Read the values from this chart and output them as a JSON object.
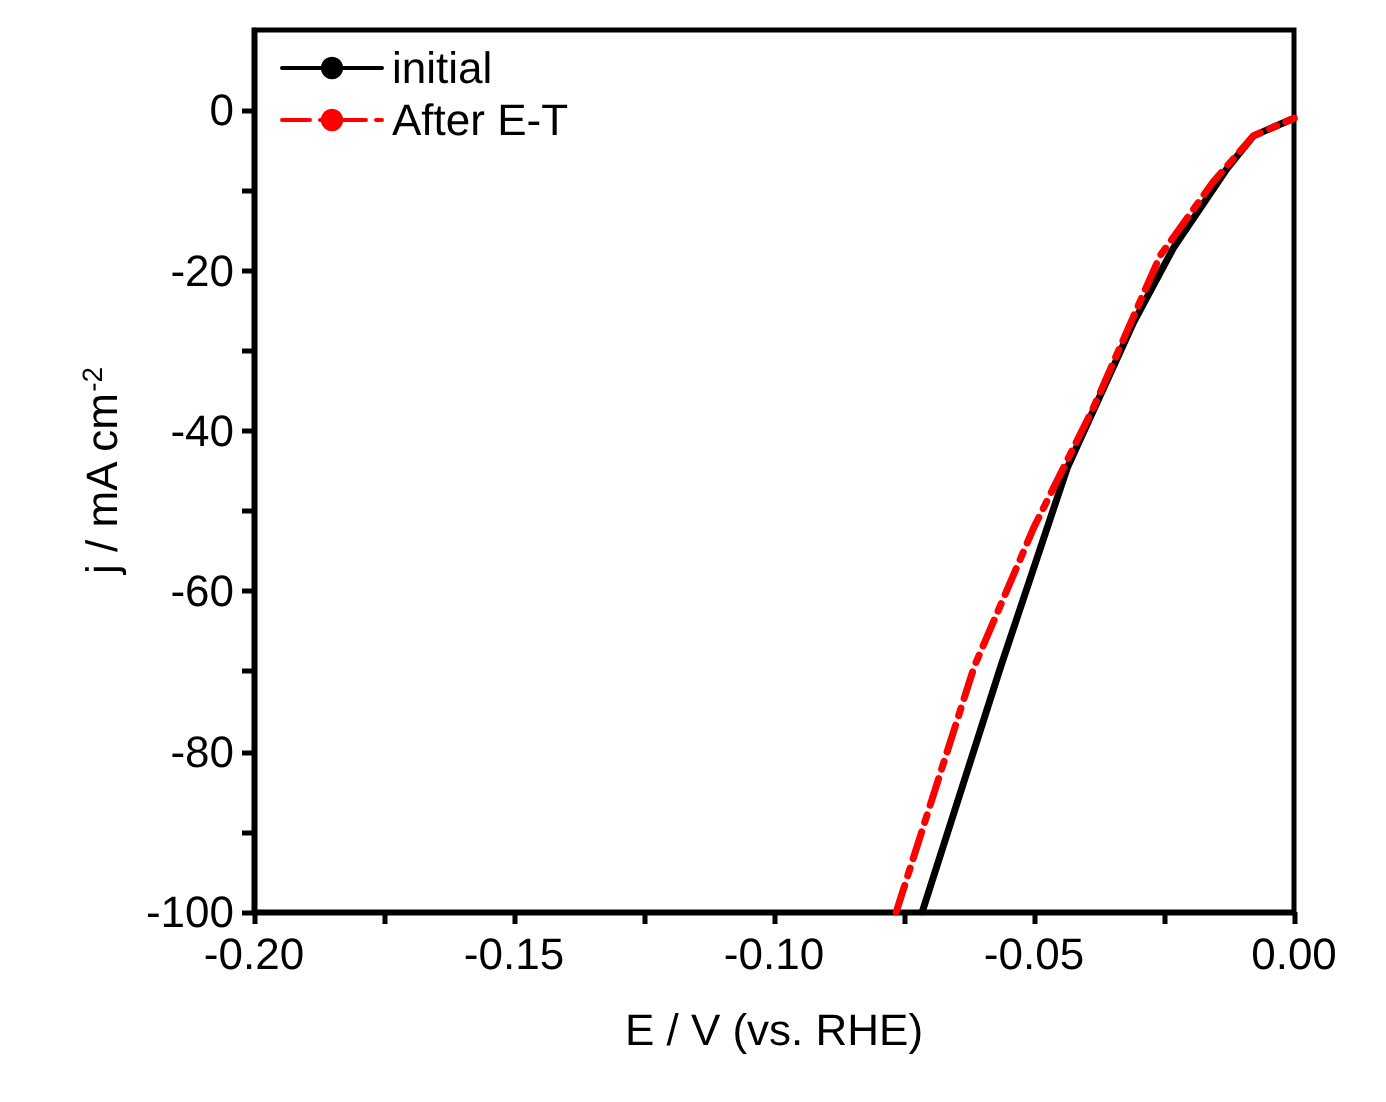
{
  "chart_data": {
    "type": "line",
    "xlabel": "E / V (vs. RHE)",
    "ylabel": "j / mA cm$^{-2}$",
    "xlim": [
      -0.2,
      0
    ],
    "ylim": [
      -100,
      10
    ],
    "xticks": [
      {
        "value": -0.2,
        "label": "-0.20"
      },
      {
        "value": -0.175,
        "label": null
      },
      {
        "value": -0.15,
        "label": "-0.15"
      },
      {
        "value": -0.125,
        "label": null
      },
      {
        "value": -0.1,
        "label": "-0.10"
      },
      {
        "value": -0.075,
        "label": null
      },
      {
        "value": -0.05,
        "label": "-0.05"
      },
      {
        "value": -0.025,
        "label": null
      },
      {
        "value": 0,
        "label": "0.00"
      }
    ],
    "yticks": [
      -100,
      {
        "value": -90,
        "label": null
      },
      -80,
      {
        "value": -70,
        "label": null
      },
      -60,
      {
        "value": -50,
        "label": null
      },
      -40,
      {
        "value": -30,
        "label": null
      },
      -20,
      {
        "value": -10,
        "label": null
      },
      0
    ],
    "legend": "top left",
    "grid": false,
    "marker": "none",
    "series": [
      {
        "name": "initial",
        "color": "#000000",
        "line_style": "solid",
        "x": [
          -0.0715,
          -0.0564,
          -0.0436,
          -0.0308,
          -0.0232,
          -0.0129,
          -0.0078,
          0
        ],
        "values": [
          -100,
          -69.4,
          -44.6,
          -26.4,
          -17.2,
          -7.3,
          -3.2,
          -1
        ]
      },
      {
        "name": "After E-T",
        "color": "#ff0000",
        "line_style": "dashed",
        "x": [
          -0.0765,
          -0.0615,
          -0.05,
          -0.0385,
          -0.0257,
          -0.0155,
          -0.0078,
          0
        ],
        "values": [
          -100,
          -69.4,
          -52,
          -37,
          -18.1,
          -8.9,
          -3.2,
          -1
        ]
      }
    ]
  }
}
